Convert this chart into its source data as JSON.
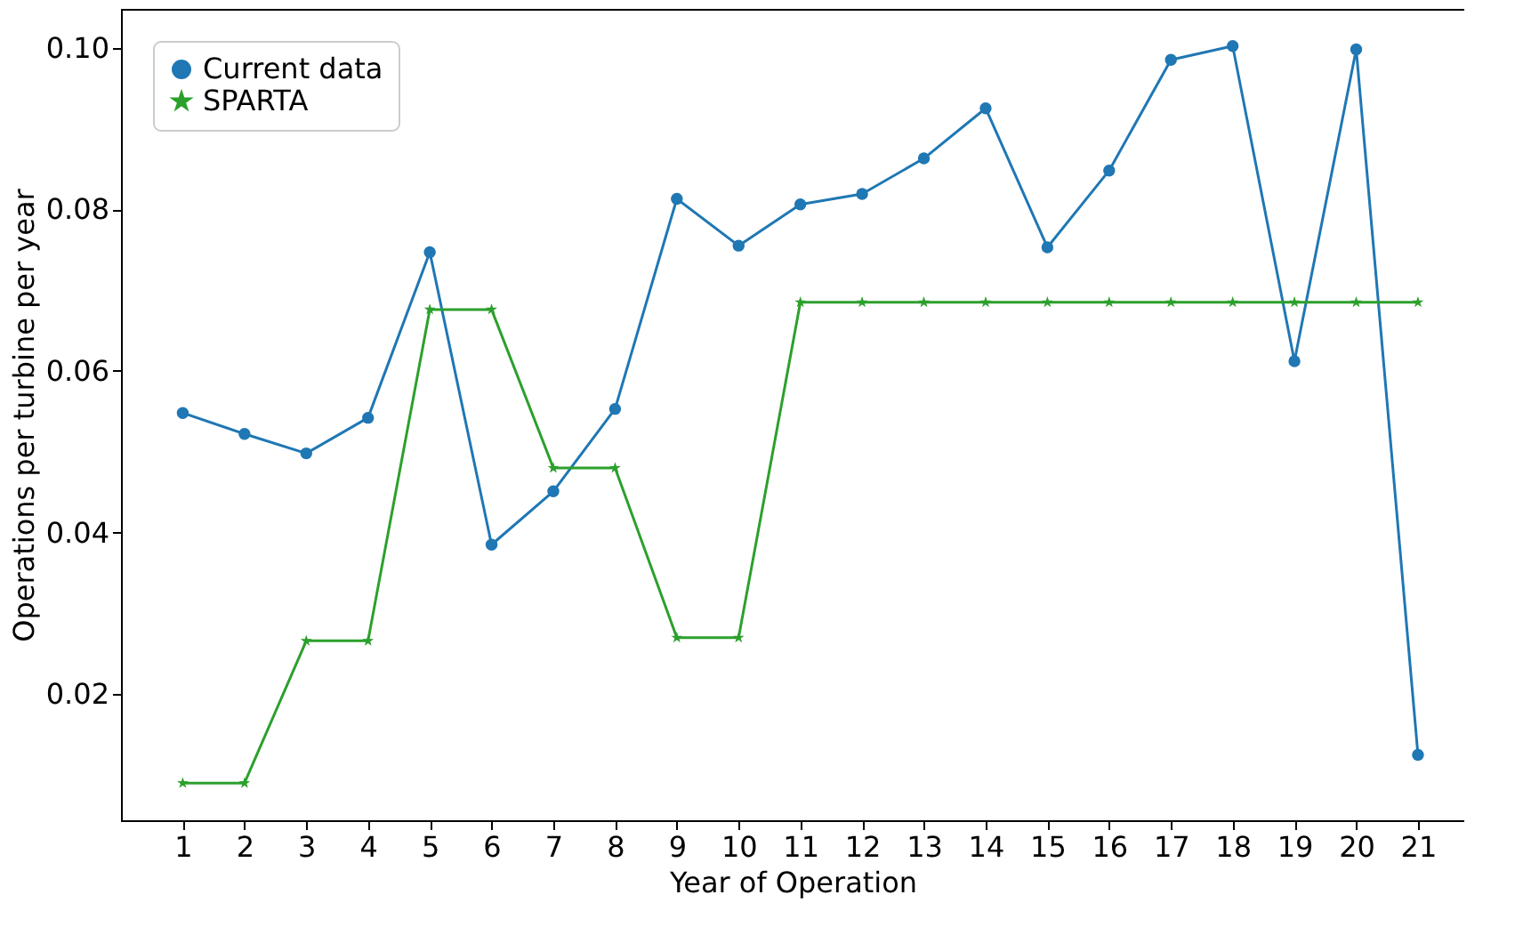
{
  "chart_data": {
    "type": "line",
    "xlabel": "Year of Operation",
    "ylabel": "Operations per turbine per year",
    "x": [
      1,
      2,
      3,
      4,
      5,
      6,
      7,
      8,
      9,
      10,
      11,
      12,
      13,
      14,
      15,
      16,
      17,
      18,
      19,
      20,
      21
    ],
    "series": [
      {
        "name": "Current data",
        "color": "#1f77b4",
        "marker": "circle",
        "values": [
          0.0548,
          0.0522,
          0.0498,
          0.0542,
          0.0747,
          0.0385,
          0.0451,
          0.0553,
          0.0813,
          0.0755,
          0.0806,
          0.0819,
          0.0863,
          0.0925,
          0.0753,
          0.0848,
          0.0985,
          0.1002,
          0.0612,
          0.0998,
          0.0125
        ]
      },
      {
        "name": "SPARTA",
        "color": "#2ca02c",
        "marker": "star",
        "values": [
          0.009,
          0.009,
          0.0266,
          0.0266,
          0.0676,
          0.0676,
          0.048,
          0.048,
          0.027,
          0.027,
          0.0685,
          0.0685,
          0.0685,
          0.0685,
          0.0685,
          0.0685,
          0.0685,
          0.0685,
          0.0685,
          0.0685,
          0.0685
        ]
      }
    ],
    "xlim": [
      0,
      21.75
    ],
    "xticks": [
      1,
      2,
      3,
      4,
      5,
      6,
      7,
      8,
      9,
      10,
      11,
      12,
      13,
      14,
      15,
      16,
      17,
      18,
      19,
      20,
      21
    ],
    "ylim": [
      0.0044,
      0.1048
    ],
    "yticks": [
      {
        "value": 0.02,
        "label": "0.02"
      },
      {
        "value": 0.04,
        "label": "0.04"
      },
      {
        "value": 0.06,
        "label": "0.06"
      },
      {
        "value": 0.08,
        "label": "0.08"
      },
      {
        "value": 0.1,
        "label": "0.10"
      }
    ],
    "grid": false,
    "legend": "top left",
    "line_style": "solid"
  }
}
